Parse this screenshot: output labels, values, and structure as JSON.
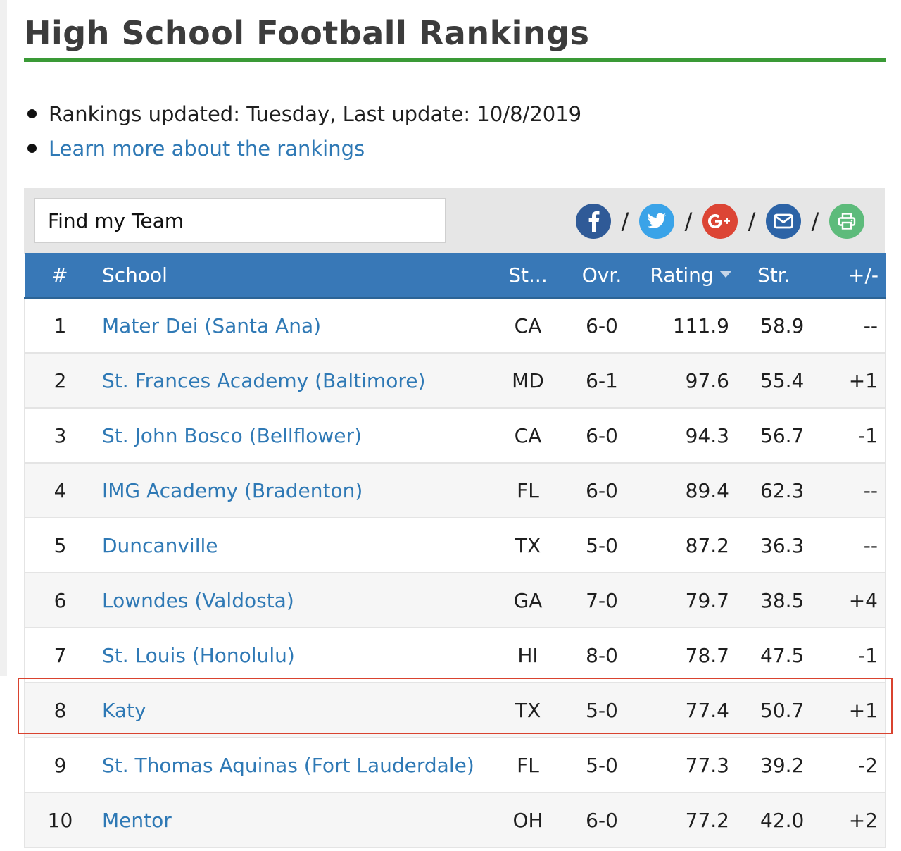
{
  "page": {
    "title": "High School Football Rankings",
    "updated_text": "Rankings updated: Tuesday, Last update: 10/8/2019",
    "learn_more": "Learn more about the rankings"
  },
  "search": {
    "placeholder": "Find my Team"
  },
  "share": {
    "separator": "/",
    "icons": [
      "facebook-icon",
      "twitter-icon",
      "google-plus-icon",
      "email-icon",
      "print-icon"
    ],
    "colors": {
      "facebook": "#2f5a97",
      "twitter": "#3aa3e8",
      "google": "#dc4535",
      "email": "#2c63a6",
      "print": "#5dbb7b"
    }
  },
  "table": {
    "headers": {
      "rank": "#",
      "school": "School",
      "state": "St...",
      "overall": "Ovr.",
      "rating": "Rating",
      "strength": "Str.",
      "change": "+/-"
    },
    "sorted_by": "Rating",
    "header_color": "#3878b7",
    "highlight_color": "#d9432f",
    "highlighted_rank": "8",
    "rows": [
      {
        "rank": "1",
        "school": "Mater Dei (Santa Ana)",
        "state": "CA",
        "overall": "6-0",
        "rating": "111.9",
        "strength": "58.9",
        "change": "--"
      },
      {
        "rank": "2",
        "school": "St. Frances Academy (Baltimore)",
        "state": "MD",
        "overall": "6-1",
        "rating": "97.6",
        "strength": "55.4",
        "change": "+1"
      },
      {
        "rank": "3",
        "school": "St. John Bosco (Bellflower)",
        "state": "CA",
        "overall": "6-0",
        "rating": "94.3",
        "strength": "56.7",
        "change": "-1"
      },
      {
        "rank": "4",
        "school": "IMG Academy (Bradenton)",
        "state": "FL",
        "overall": "6-0",
        "rating": "89.4",
        "strength": "62.3",
        "change": "--"
      },
      {
        "rank": "5",
        "school": "Duncanville",
        "state": "TX",
        "overall": "5-0",
        "rating": "87.2",
        "strength": "36.3",
        "change": "--"
      },
      {
        "rank": "6",
        "school": "Lowndes (Valdosta)",
        "state": "GA",
        "overall": "7-0",
        "rating": "79.7",
        "strength": "38.5",
        "change": "+4"
      },
      {
        "rank": "7",
        "school": "St. Louis (Honolulu)",
        "state": "HI",
        "overall": "8-0",
        "rating": "78.7",
        "strength": "47.5",
        "change": "-1"
      },
      {
        "rank": "8",
        "school": "Katy",
        "state": "TX",
        "overall": "5-0",
        "rating": "77.4",
        "strength": "50.7",
        "change": "+1"
      },
      {
        "rank": "9",
        "school": "St. Thomas Aquinas (Fort Lauderdale)",
        "state": "FL",
        "overall": "5-0",
        "rating": "77.3",
        "strength": "39.2",
        "change": "-2"
      },
      {
        "rank": "10",
        "school": "Mentor",
        "state": "OH",
        "overall": "6-0",
        "rating": "77.2",
        "strength": "42.0",
        "change": "+2"
      }
    ]
  }
}
